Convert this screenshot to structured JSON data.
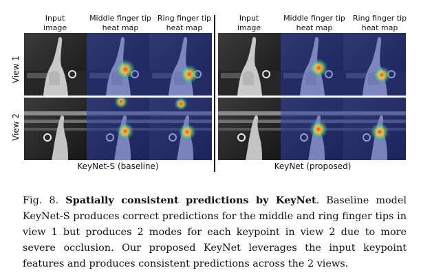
{
  "figure": {
    "headers": {
      "input": [
        "Input",
        "image"
      ],
      "middle": [
        "Middle finger tip",
        "heat map"
      ],
      "ring": [
        "Ring finger tip",
        "heat map"
      ]
    },
    "rows": [
      "View 1",
      "View 2"
    ],
    "panels": [
      {
        "caption": "KeyNet-S (baseline)"
      },
      {
        "caption": "KeyNet (proposed)"
      }
    ]
  },
  "caption": {
    "label": "Fig. 8.",
    "title": "Spatially consistent predictions by KeyNet",
    "body": ". Baseline model KeyNet-S produces correct predictions for the middle and ring finger tips in view 1 but produces 2 modes for each keypoint in view 2 due to more severe occlusion. Our proposed KeyNet leverages the input keypoint features and produces consistent predictions across the 2 views."
  }
}
